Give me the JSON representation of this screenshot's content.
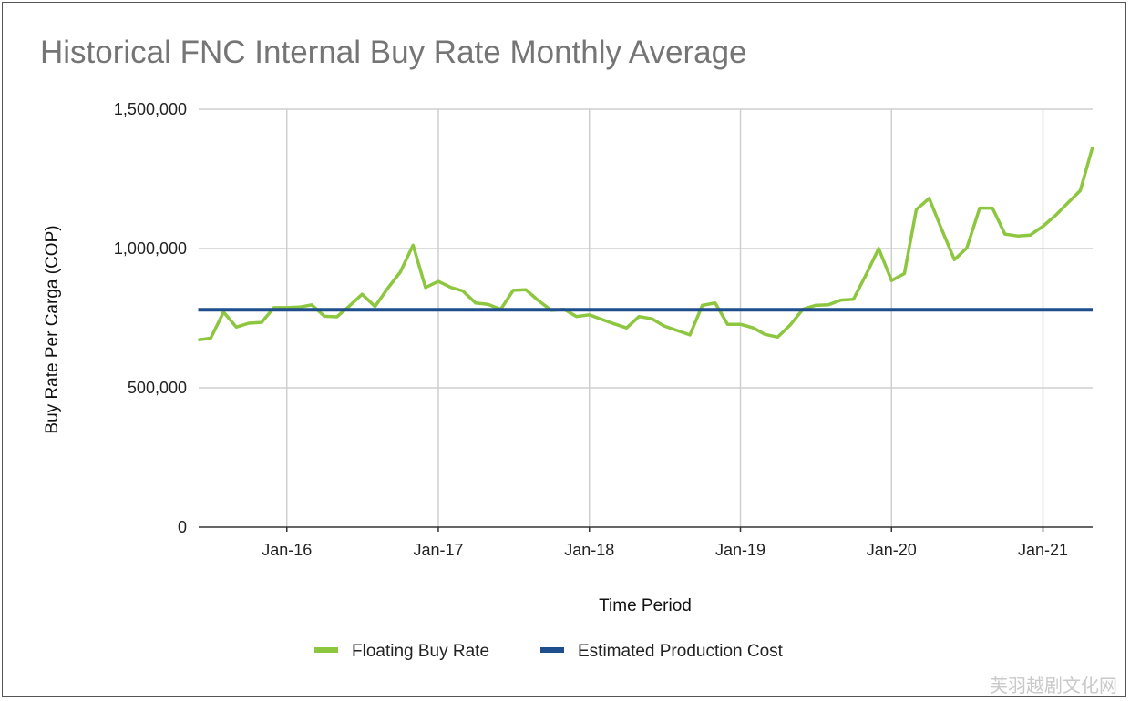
{
  "chart_data": {
    "type": "line",
    "title": "Historical FNC Internal Buy Rate Monthly Average",
    "xlabel": "Time Period",
    "ylabel": "Buy Rate Per Carga (COP)",
    "ylim": [
      0,
      1500000
    ],
    "yticks": [
      0,
      500000,
      1000000,
      1500000
    ],
    "ytick_labels": [
      "0",
      "500,000",
      "1,000,000",
      "1,500,000"
    ],
    "xticks": [
      "2016-01",
      "2017-01",
      "2018-01",
      "2019-01",
      "2020-01",
      "2021-01"
    ],
    "xtick_labels": [
      "Jan-16",
      "Jan-17",
      "Jan-18",
      "Jan-19",
      "Jan-20",
      "Jan-21"
    ],
    "xlim": [
      "2015-06-16",
      "2021-05-15"
    ],
    "grid": true,
    "legend_position": "bottom",
    "series": [
      {
        "name": "Floating Buy Rate",
        "color": "#8DC63F",
        "x": [
          "2015-06",
          "2015-07",
          "2015-08",
          "2015-09",
          "2015-10",
          "2015-11",
          "2015-12",
          "2016-01",
          "2016-02",
          "2016-03",
          "2016-04",
          "2016-05",
          "2016-06",
          "2016-07",
          "2016-08",
          "2016-09",
          "2016-10",
          "2016-11",
          "2016-12",
          "2017-01",
          "2017-02",
          "2017-03",
          "2017-04",
          "2017-05",
          "2017-06",
          "2017-07",
          "2017-08",
          "2017-09",
          "2017-10",
          "2017-11",
          "2017-12",
          "2018-01",
          "2018-02",
          "2018-03",
          "2018-04",
          "2018-05",
          "2018-06",
          "2018-07",
          "2018-08",
          "2018-09",
          "2018-10",
          "2018-11",
          "2018-12",
          "2019-01",
          "2019-02",
          "2019-03",
          "2019-04",
          "2019-05",
          "2019-06",
          "2019-07",
          "2019-08",
          "2019-09",
          "2019-10",
          "2019-11",
          "2019-12",
          "2020-01",
          "2020-02",
          "2020-03",
          "2020-04",
          "2020-05",
          "2020-06",
          "2020-07",
          "2020-08",
          "2020-09",
          "2020-10",
          "2020-11",
          "2020-12",
          "2021-01",
          "2021-02",
          "2021-03",
          "2021-04",
          "2021-05"
        ],
        "values": [
          672000,
          678000,
          772000,
          718000,
          732000,
          735000,
          788000,
          788000,
          790000,
          798000,
          757000,
          755000,
          795000,
          836000,
          792000,
          858000,
          915000,
          1012000,
          860000,
          882000,
          860000,
          848000,
          805000,
          800000,
          782000,
          850000,
          852000,
          812000,
          778000,
          782000,
          756000,
          762000,
          745000,
          730000,
          715000,
          756000,
          748000,
          722000,
          706000,
          690000,
          796000,
          805000,
          728000,
          728000,
          715000,
          692000,
          682000,
          725000,
          782000,
          796000,
          798000,
          815000,
          818000,
          908000,
          1000000,
          885000,
          910000,
          1140000,
          1180000,
          1070000,
          960000,
          1002000,
          1145000,
          1145000,
          1052000,
          1045000,
          1048000,
          1080000,
          1120000,
          1162000,
          1208000,
          1365000
        ]
      },
      {
        "name": "Estimated Production Cost",
        "color": "#1F4E8C",
        "x": [
          "2015-06",
          "2021-05"
        ],
        "values": [
          780000,
          780000
        ]
      }
    ]
  }
}
